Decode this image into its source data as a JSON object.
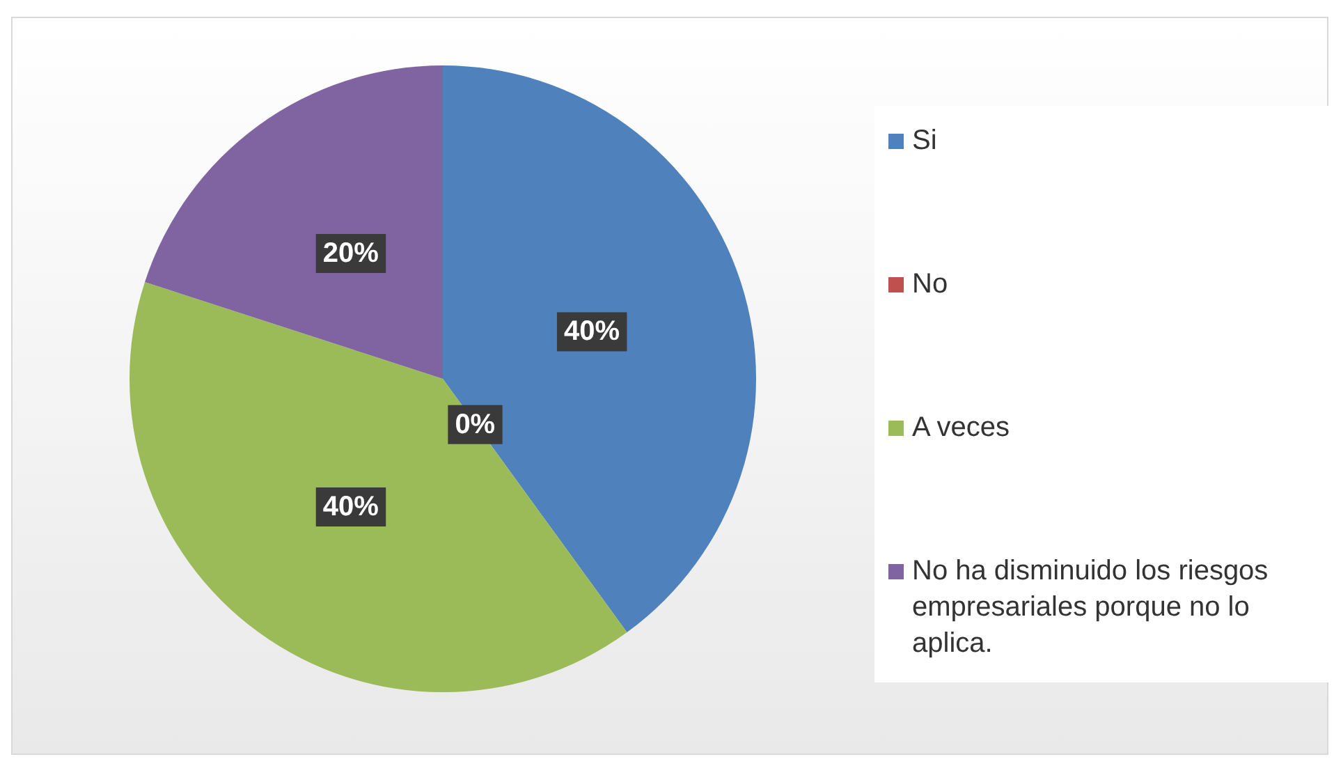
{
  "chart_data": {
    "type": "pie",
    "categories": [
      "Si",
      "No",
      "A veces",
      "No ha disminuido los riesgos empresariales porque no lo aplica."
    ],
    "values": [
      40,
      0,
      40,
      20
    ],
    "colors": [
      "#4f81bd",
      "#c0504d",
      "#9bbb59",
      "#8064a2"
    ],
    "value_labels": [
      "40%",
      "0%",
      "40%",
      "20%"
    ],
    "legend": "right"
  }
}
